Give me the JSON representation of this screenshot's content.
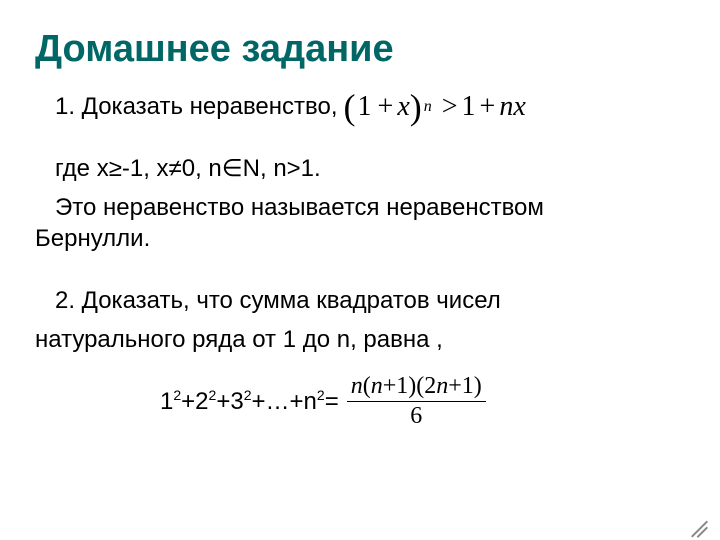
{
  "title": "Домашнее задание",
  "task1_prefix": "1. Доказать неравенство,",
  "formula1": {
    "base_open": "(",
    "one": "1",
    "plus": "+",
    "x": "x",
    "base_close": ")",
    "exp": "n",
    "gt": ">",
    "rhs_one": "1",
    "rhs_plus": "+",
    "n": "n",
    "x2": "x"
  },
  "task1_cond": "где х≥-1, х≠0, n∈N, n>1.",
  "task1_desc1": "Это неравенство называется неравенством",
  "task1_desc2": "Бернулли.",
  "task2_line1": "2. Доказать, что сумма квадратов чисел",
  "task2_line2": "натурального ряда от 1 до n, равна ,",
  "sumsq": {
    "t1": "1",
    "t2": "2",
    "t3": "3",
    "tn": "n",
    "sq": "2",
    "plus": "+",
    "dots": "+…+",
    "eq": "="
  },
  "frac": {
    "top": "n(n+1)(2n+1)",
    "bot": "6"
  }
}
